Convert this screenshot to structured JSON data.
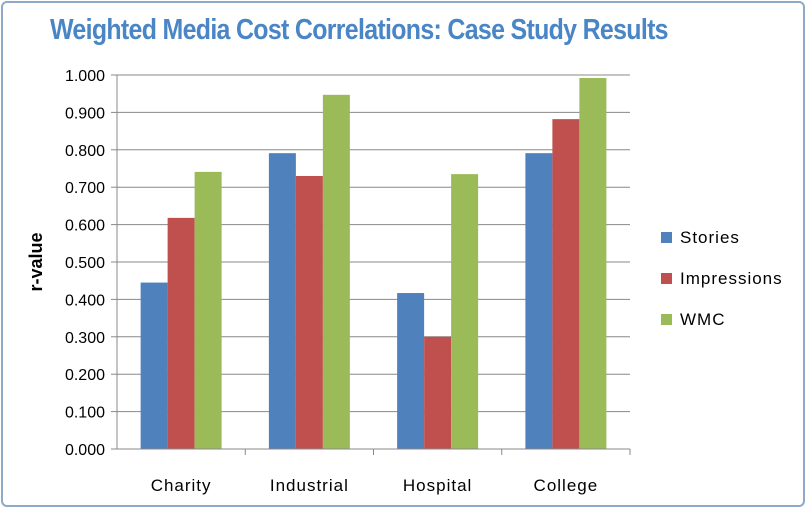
{
  "chart_data": {
    "type": "bar",
    "title": "Weighted Media Cost Correlations: Case Study Results",
    "xlabel": "",
    "ylabel": "r-value",
    "ylim": [
      0,
      1
    ],
    "yticks": [
      "0.000",
      "0.100",
      "0.200",
      "0.300",
      "0.400",
      "0.500",
      "0.600",
      "0.700",
      "0.800",
      "0.900",
      "1.000"
    ],
    "categories": [
      "Charity",
      "Industrial",
      "Hospital",
      "College"
    ],
    "series": [
      {
        "name": "Stories",
        "color": "#4f81bd",
        "values": [
          0.445,
          0.791,
          0.417,
          0.791
        ]
      },
      {
        "name": "Impressions",
        "color": "#c0504d",
        "values": [
          0.618,
          0.73,
          0.3,
          0.882
        ]
      },
      {
        "name": "WMC",
        "color": "#9bbb59",
        "values": [
          0.741,
          0.947,
          0.735,
          0.992
        ]
      }
    ],
    "grid": true,
    "legend": "right"
  }
}
